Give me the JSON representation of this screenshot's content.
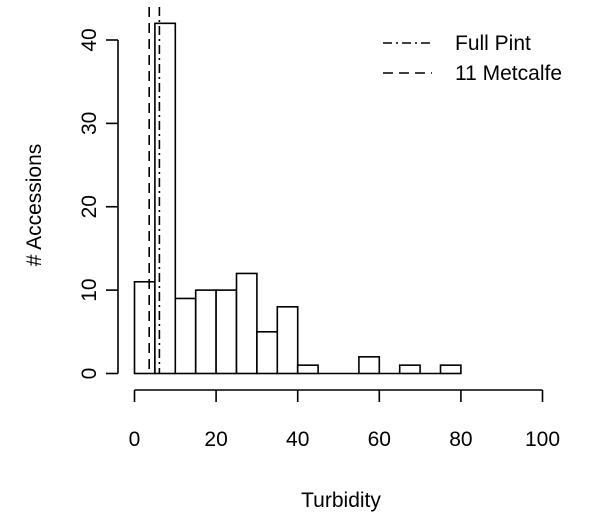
{
  "chart_data": {
    "type": "bar",
    "title": "",
    "xlabel": "Turbidity",
    "ylabel": "# Accessions",
    "xlim": [
      0,
      100
    ],
    "ylim": [
      0,
      42
    ],
    "x_ticks": [
      0,
      20,
      40,
      60,
      80,
      100
    ],
    "y_ticks": [
      0,
      10,
      20,
      30,
      40
    ],
    "bin_width": 5,
    "bins": [
      {
        "x0": 0,
        "x1": 5,
        "count": 11
      },
      {
        "x0": 5,
        "x1": 10,
        "count": 42
      },
      {
        "x0": 10,
        "x1": 15,
        "count": 9
      },
      {
        "x0": 15,
        "x1": 20,
        "count": 10
      },
      {
        "x0": 20,
        "x1": 25,
        "count": 10
      },
      {
        "x0": 25,
        "x1": 30,
        "count": 12
      },
      {
        "x0": 30,
        "x1": 35,
        "count": 5
      },
      {
        "x0": 35,
        "x1": 40,
        "count": 8
      },
      {
        "x0": 40,
        "x1": 45,
        "count": 1
      },
      {
        "x0": 45,
        "x1": 50,
        "count": 0
      },
      {
        "x0": 50,
        "x1": 55,
        "count": 0
      },
      {
        "x0": 55,
        "x1": 60,
        "count": 2
      },
      {
        "x0": 60,
        "x1": 65,
        "count": 0
      },
      {
        "x0": 65,
        "x1": 70,
        "count": 1
      },
      {
        "x0": 70,
        "x1": 75,
        "count": 0
      },
      {
        "x0": 75,
        "x1": 80,
        "count": 1
      }
    ],
    "reference_lines": [
      {
        "name": "Full Pint",
        "x": 6.1,
        "style": "dotdash"
      },
      {
        "name": "11 Metcalfe",
        "x": 3.6,
        "style": "dashed"
      }
    ],
    "legend_position": "top-right",
    "grid": false,
    "colors": {
      "bar_fill": "#ffffff",
      "stroke": "#000000"
    }
  }
}
